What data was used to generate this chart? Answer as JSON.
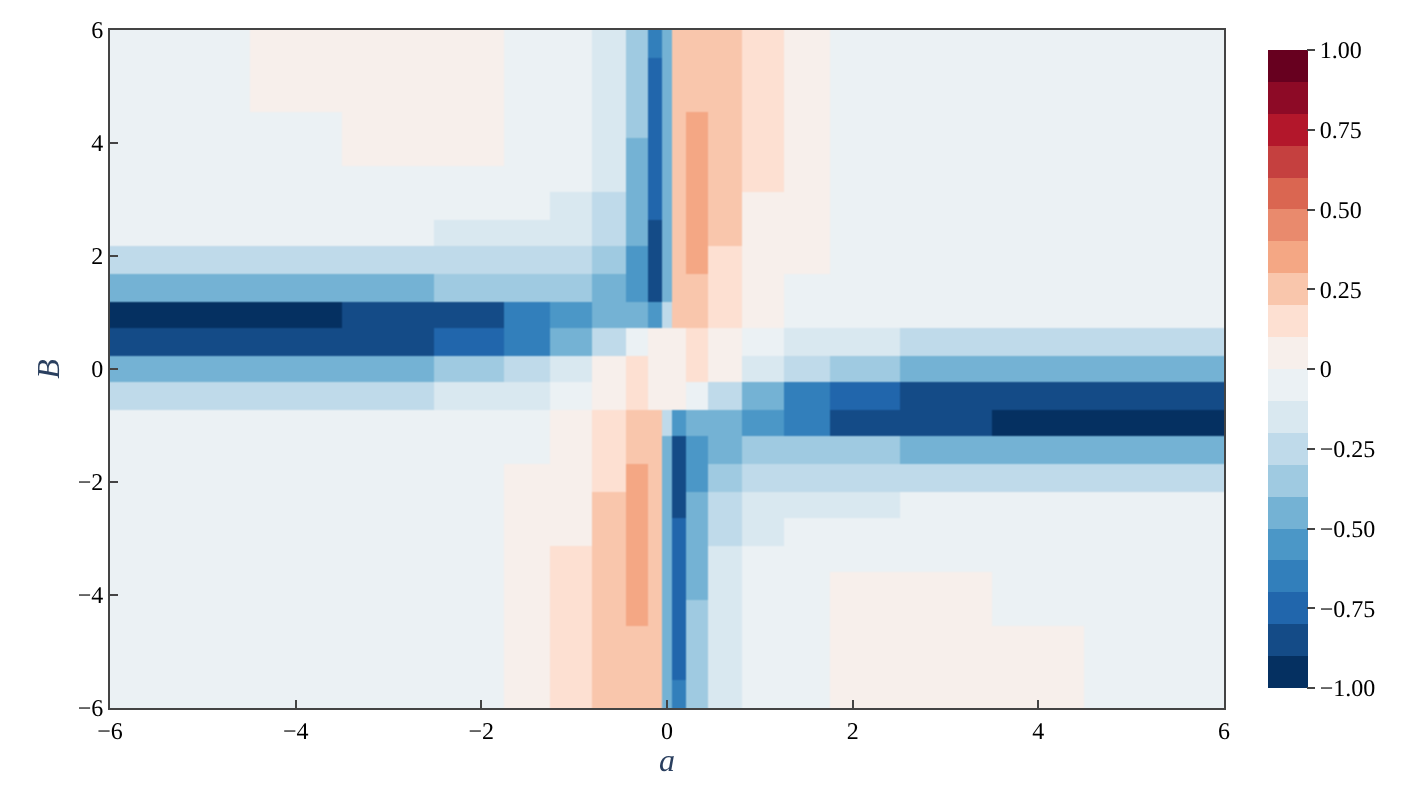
{
  "chart_data": {
    "type": "heatmap",
    "xlabel": "a",
    "ylabel": "B",
    "x": [
      -5.8,
      -5,
      -4,
      -3,
      -2,
      -1.5,
      -1,
      -0.6,
      -0.3,
      -0.1,
      0,
      0.1,
      0.3,
      0.6,
      1,
      1.5,
      2,
      3,
      4,
      5,
      5.8
    ],
    "xlim": [
      -6,
      6
    ],
    "ylim": [
      -6,
      6
    ],
    "xticks": [
      {
        "value": -6,
        "label": "−6"
      },
      {
        "value": -4,
        "label": "−4"
      },
      {
        "value": -2,
        "label": "−2"
      },
      0,
      2,
      4,
      6
    ],
    "yticks": [
      {
        "value": -6,
        "label": "−6"
      },
      {
        "value": -4,
        "label": "−4"
      },
      {
        "value": -2,
        "label": "−2"
      },
      0,
      2,
      4,
      6
    ],
    "clim": [
      -1,
      1
    ],
    "cticks": [
      {
        "value": -1,
        "label": "−1.00"
      },
      {
        "value": -0.75,
        "label": "−0.75"
      },
      {
        "value": -0.5,
        "label": "−0.50"
      },
      {
        "value": -0.25,
        "label": "−0.25"
      },
      0,
      {
        "value": 0.25,
        "label": "0.25"
      },
      {
        "value": 0.5,
        "label": "0.50"
      },
      {
        "value": 0.75,
        "label": "0.75"
      },
      {
        "value": 1,
        "label": "1.00"
      }
    ],
    "colors": [
      "#053061",
      "#144b87",
      "#2166ac",
      "#327fbb",
      "#4b97c7",
      "#74b2d4",
      "#9fcae1",
      "#bfdaea",
      "#d9e8f0",
      "#ebf1f4",
      "#f7efeb",
      "#fde0d2",
      "#f9c6ac",
      "#f4a784",
      "#e98a6d",
      "#da6651",
      "#c5403f",
      "#b3172b",
      "#8d0a26",
      "#67001f"
    ],
    "cells": [
      [
        -0.03,
        -0.02,
        0.01,
        0.05,
        0.02,
        -0.02,
        -0.06,
        -0.12,
        -0.35,
        -0.7,
        -0.5,
        0.25,
        0.28,
        0.22,
        0.12,
        0.05,
        -0.02,
        -0.03,
        -0.03,
        -0.03,
        -0.03
      ],
      [
        -0.03,
        -0.02,
        0.01,
        0.05,
        0.03,
        -0.02,
        -0.06,
        -0.13,
        -0.37,
        -0.72,
        -0.5,
        0.26,
        0.29,
        0.22,
        0.12,
        0.05,
        -0.02,
        -0.03,
        -0.03,
        -0.03,
        -0.03
      ],
      [
        -0.03,
        -0.03,
        0.0,
        0.04,
        0.02,
        -0.02,
        -0.07,
        -0.14,
        -0.38,
        -0.74,
        -0.5,
        0.27,
        0.3,
        0.22,
        0.12,
        0.05,
        -0.02,
        -0.03,
        -0.03,
        -0.03,
        -0.03
      ],
      [
        -0.03,
        -0.03,
        -0.01,
        0.03,
        0.02,
        -0.02,
        -0.07,
        -0.15,
        -0.4,
        -0.76,
        -0.5,
        0.28,
        0.31,
        0.22,
        0.12,
        0.05,
        -0.02,
        -0.03,
        -0.03,
        -0.03,
        -0.03
      ],
      [
        -0.03,
        -0.03,
        -0.02,
        0.02,
        0.01,
        -0.03,
        -0.08,
        -0.16,
        -0.42,
        -0.78,
        -0.5,
        0.28,
        0.32,
        0.22,
        0.12,
        0.05,
        -0.02,
        -0.03,
        -0.03,
        -0.03,
        -0.03
      ],
      [
        -0.03,
        -0.03,
        -0.03,
        -0.01,
        -0.01,
        -0.03,
        -0.08,
        -0.18,
        -0.44,
        -0.8,
        -0.5,
        0.29,
        0.32,
        0.22,
        0.11,
        0.04,
        -0.02,
        -0.03,
        -0.03,
        -0.03,
        -0.03
      ],
      [
        -0.04,
        -0.04,
        -0.04,
        -0.04,
        -0.04,
        -0.05,
        -0.1,
        -0.2,
        -0.46,
        -0.8,
        -0.5,
        0.29,
        0.32,
        0.21,
        0.1,
        0.03,
        -0.02,
        -0.03,
        -0.03,
        -0.03,
        -0.03
      ],
      [
        -0.09,
        -0.09,
        -0.09,
        -0.09,
        -0.1,
        -0.12,
        -0.16,
        -0.25,
        -0.5,
        -0.82,
        -0.5,
        0.3,
        0.32,
        0.2,
        0.09,
        0.02,
        -0.03,
        -0.03,
        -0.03,
        -0.03,
        -0.03
      ],
      [
        -0.2,
        -0.2,
        -0.2,
        -0.2,
        -0.21,
        -0.22,
        -0.26,
        -0.34,
        -0.56,
        -0.85,
        -0.5,
        0.3,
        0.31,
        0.18,
        0.07,
        0.0,
        -0.03,
        -0.03,
        -0.03,
        -0.03,
        -0.03
      ],
      [
        -0.45,
        -0.45,
        -0.44,
        -0.42,
        -0.4,
        -0.38,
        -0.38,
        -0.42,
        -0.6,
        -0.88,
        -0.5,
        0.28,
        0.28,
        0.15,
        0.05,
        -0.01,
        -0.03,
        -0.03,
        -0.03,
        -0.03,
        -0.03
      ],
      [
        -0.95,
        -0.95,
        -0.93,
        -0.9,
        -0.82,
        -0.7,
        -0.55,
        -0.45,
        -0.5,
        -0.6,
        -0.3,
        0.22,
        0.22,
        0.12,
        0.03,
        -0.01,
        -0.03,
        -0.03,
        -0.03,
        -0.03,
        -0.03
      ],
      [
        -0.9,
        -0.9,
        -0.88,
        -0.85,
        -0.75,
        -0.62,
        -0.42,
        -0.2,
        -0.05,
        0.05,
        0.08,
        0.1,
        0.12,
        0.05,
        -0.05,
        -0.12,
        -0.17,
        -0.2,
        -0.2,
        -0.2,
        -0.2
      ],
      [
        -0.5,
        -0.5,
        -0.48,
        -0.45,
        -0.4,
        -0.3,
        -0.15,
        0.05,
        0.12,
        0.1,
        0.1,
        0.1,
        0.12,
        0.05,
        -0.15,
        -0.3,
        -0.4,
        -0.45,
        -0.48,
        -0.5,
        -0.5
      ],
      [
        -0.2,
        -0.2,
        -0.2,
        -0.2,
        -0.17,
        -0.12,
        -0.05,
        0.05,
        0.12,
        0.1,
        0.08,
        0.05,
        -0.05,
        -0.2,
        -0.42,
        -0.62,
        -0.75,
        -0.85,
        -0.88,
        -0.9,
        -0.9
      ],
      [
        -0.03,
        -0.03,
        -0.03,
        -0.03,
        -0.03,
        -0.01,
        0.03,
        0.12,
        0.22,
        0.22,
        -0.3,
        -0.6,
        -0.5,
        -0.45,
        -0.55,
        -0.7,
        -0.82,
        -0.9,
        -0.93,
        -0.95,
        -0.95
      ],
      [
        -0.03,
        -0.03,
        -0.03,
        -0.03,
        -0.03,
        -0.01,
        0.05,
        0.15,
        0.28,
        0.28,
        -0.5,
        -0.88,
        -0.6,
        -0.42,
        -0.38,
        -0.38,
        -0.4,
        -0.42,
        -0.44,
        -0.45,
        -0.45
      ],
      [
        -0.03,
        -0.03,
        -0.03,
        -0.03,
        -0.03,
        0.0,
        0.07,
        0.18,
        0.31,
        0.3,
        -0.5,
        -0.85,
        -0.56,
        -0.34,
        -0.26,
        -0.22,
        -0.21,
        -0.2,
        -0.2,
        -0.2,
        -0.2
      ],
      [
        -0.03,
        -0.03,
        -0.03,
        -0.03,
        -0.03,
        0.02,
        0.09,
        0.2,
        0.32,
        0.3,
        -0.5,
        -0.82,
        -0.5,
        -0.25,
        -0.16,
        -0.12,
        -0.1,
        -0.09,
        -0.09,
        -0.09,
        -0.09
      ],
      [
        -0.03,
        -0.03,
        -0.03,
        -0.03,
        -0.02,
        0.03,
        0.1,
        0.21,
        0.32,
        0.29,
        -0.5,
        -0.8,
        -0.46,
        -0.2,
        -0.1,
        -0.05,
        -0.04,
        -0.04,
        -0.04,
        -0.04,
        -0.04
      ],
      [
        -0.03,
        -0.03,
        -0.03,
        -0.03,
        -0.02,
        0.04,
        0.11,
        0.22,
        0.32,
        0.29,
        -0.5,
        -0.8,
        -0.44,
        -0.18,
        -0.08,
        -0.03,
        -0.01,
        -0.01,
        -0.03,
        -0.03,
        -0.03
      ],
      [
        -0.03,
        -0.03,
        -0.03,
        -0.03,
        -0.02,
        0.05,
        0.12,
        0.22,
        0.32,
        0.28,
        -0.5,
        -0.78,
        -0.42,
        -0.16,
        -0.08,
        -0.03,
        0.01,
        0.02,
        -0.02,
        -0.03,
        -0.03
      ],
      [
        -0.03,
        -0.03,
        -0.03,
        -0.03,
        -0.02,
        0.05,
        0.12,
        0.22,
        0.31,
        0.28,
        -0.5,
        -0.76,
        -0.4,
        -0.15,
        -0.07,
        -0.02,
        0.02,
        0.03,
        -0.01,
        -0.03,
        -0.03
      ],
      [
        -0.03,
        -0.03,
        -0.03,
        -0.03,
        -0.02,
        0.05,
        0.12,
        0.22,
        0.3,
        0.27,
        -0.5,
        -0.74,
        -0.38,
        -0.14,
        -0.07,
        -0.02,
        0.02,
        0.04,
        0.0,
        -0.03,
        -0.03
      ],
      [
        -0.03,
        -0.03,
        -0.03,
        -0.03,
        -0.02,
        0.05,
        0.12,
        0.22,
        0.29,
        0.26,
        -0.5,
        -0.72,
        -0.37,
        -0.13,
        -0.06,
        -0.02,
        0.03,
        0.05,
        0.01,
        -0.02,
        -0.03
      ],
      [
        -0.03,
        -0.03,
        -0.03,
        -0.03,
        -0.02,
        0.05,
        0.12,
        0.22,
        0.28,
        0.25,
        -0.5,
        -0.7,
        -0.35,
        -0.12,
        -0.06,
        -0.02,
        0.03,
        0.05,
        0.03,
        -0.02,
        -0.03
      ]
    ]
  }
}
